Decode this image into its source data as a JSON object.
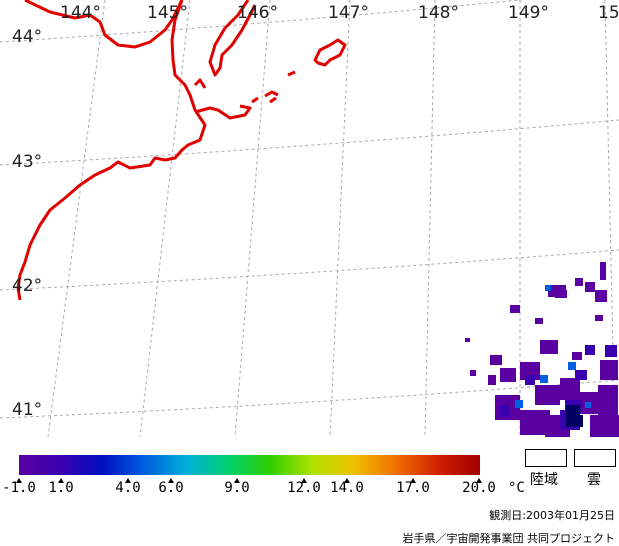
{
  "longitudes": [
    "144°",
    "145°",
    "146°",
    "147°",
    "148°",
    "149°",
    "15"
  ],
  "latitudes": [
    "44°",
    "43°",
    "42°",
    "41°"
  ],
  "colorbar": {
    "colors": [
      "#5a00a0",
      "#3a00b0",
      "#0010c0",
      "#0060e0",
      "#00b0d8",
      "#00d070",
      "#30d000",
      "#b0e000",
      "#f0c000",
      "#f07000",
      "#d02000",
      "#a00000"
    ],
    "tick_labels": [
      "-1.0",
      "1.0",
      "4.0",
      "6.0",
      "9.0",
      "12.0",
      "14.0",
      "17.0",
      "20.0"
    ],
    "unit": "°C"
  },
  "legend": {
    "land": "陸域",
    "cloud": "雲"
  },
  "observation_date": "観測日:2003年01月25日",
  "credit": "岩手県／宇宙開発事業団 共同プロジェクト",
  "colors": {
    "coastline": "#e00000",
    "grid": "#aaaaaa"
  }
}
